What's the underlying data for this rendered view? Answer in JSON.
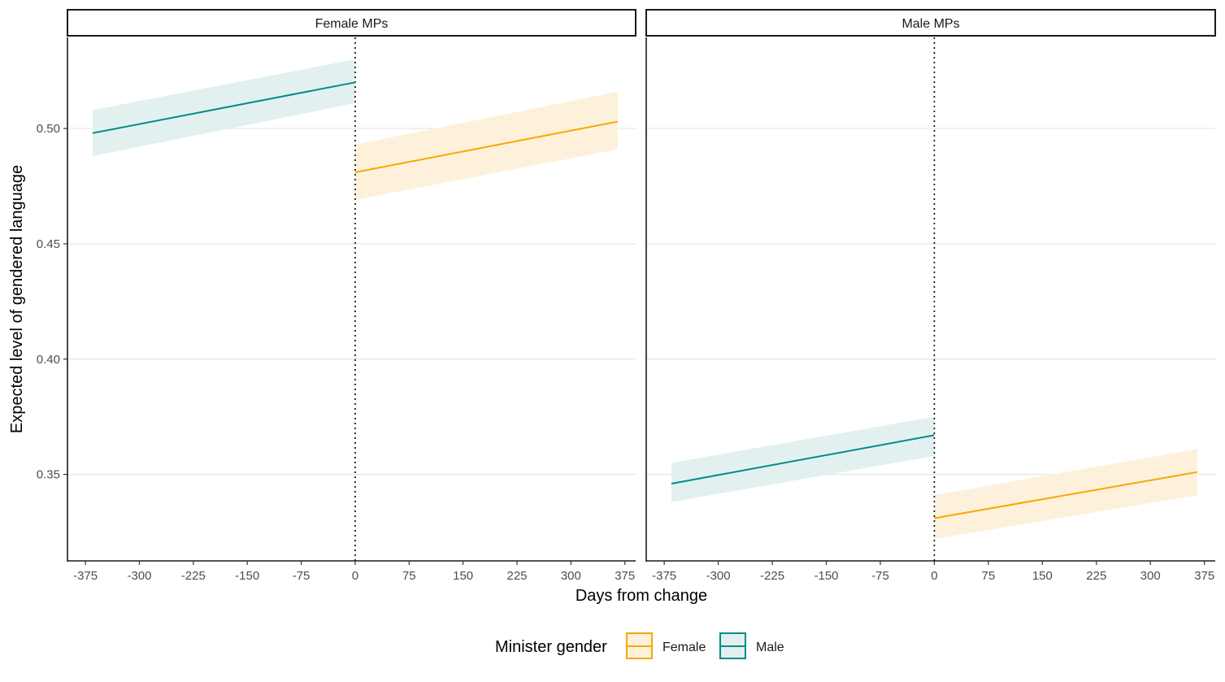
{
  "chart_data": {
    "type": "line",
    "title": "",
    "xlabel": "Days from change",
    "ylabel": "Expected level of gendered language",
    "xlim": [
      -400,
      390
    ],
    "ylim": [
      0.3125,
      0.5395
    ],
    "x_ticks": [
      -375,
      -300,
      -225,
      -150,
      -75,
      0,
      75,
      150,
      225,
      300,
      375
    ],
    "x_tick_labels": [
      "-375",
      "-300",
      "-225",
      "-150",
      "-75",
      "0",
      "75",
      "150",
      "225",
      "300",
      "375"
    ],
    "y_ticks": [
      0.35,
      0.4,
      0.45,
      0.5
    ],
    "y_tick_labels": [
      "0.35",
      "0.40",
      "0.45",
      "0.50"
    ],
    "grid": "horizontal-major",
    "reference_line_x": 0,
    "legend": {
      "title": "Minister gender",
      "placement": "bottom",
      "entries": [
        {
          "label": "Female",
          "color": "#F5A800"
        },
        {
          "label": "Male",
          "color": "#008B8B"
        }
      ]
    },
    "facets": [
      {
        "label": "Female MPs",
        "series": [
          {
            "name": "Male",
            "color": "#008B8B",
            "x": [
              -365,
              0
            ],
            "y": [
              0.498,
              0.52
            ],
            "lower": [
              0.488,
              0.511
            ],
            "upper": [
              0.508,
              0.53
            ]
          },
          {
            "name": "Female",
            "color": "#F5A800",
            "x": [
              0,
              365
            ],
            "y": [
              0.481,
              0.503
            ],
            "lower": [
              0.469,
              0.491
            ],
            "upper": [
              0.493,
              0.516
            ]
          }
        ]
      },
      {
        "label": "Male MPs",
        "series": [
          {
            "name": "Male",
            "color": "#008B8B",
            "x": [
              -365,
              0
            ],
            "y": [
              0.346,
              0.367
            ],
            "lower": [
              0.338,
              0.358
            ],
            "upper": [
              0.355,
              0.375
            ]
          },
          {
            "name": "Female",
            "color": "#F5A800",
            "x": [
              0,
              365
            ],
            "y": [
              0.331,
              0.351
            ],
            "lower": [
              0.322,
              0.341
            ],
            "upper": [
              0.341,
              0.361
            ]
          }
        ]
      }
    ]
  }
}
